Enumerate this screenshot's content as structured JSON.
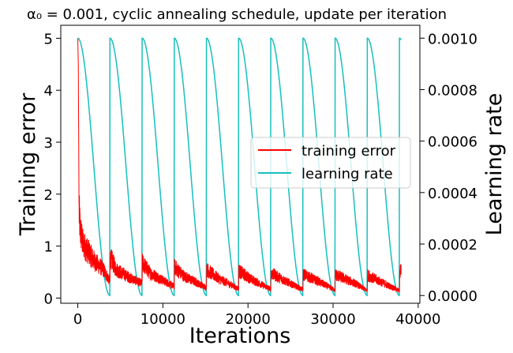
{
  "chart_data": {
    "type": "line",
    "title": "α₀ = 0.001, cyclic annealing schedule, update per iteration",
    "xlabel": "Iterations",
    "ylabel_left": "Training error",
    "ylabel_right": "Learning rate",
    "xlim": [
      -2000,
      40200
    ],
    "ylim_left": [
      -0.1,
      5.25
    ],
    "ylim_right": [
      -3e-05,
      0.00105
    ],
    "x_ticks": [
      0,
      10000,
      20000,
      30000,
      40000
    ],
    "x_tick_labels": [
      "0",
      "10000",
      "20000",
      "30000",
      "40000"
    ],
    "yleft_ticks": [
      0,
      1,
      2,
      3,
      4,
      5
    ],
    "yleft_tick_labels": [
      "0",
      "1",
      "2",
      "3",
      "4",
      "5"
    ],
    "yright_ticks": [
      0.0,
      0.0002,
      0.0004,
      0.0006,
      0.0008,
      0.001
    ],
    "yright_tick_labels": [
      "0.0000",
      "0.0002",
      "0.0004",
      "0.0006",
      "0.0008",
      "0.0010"
    ],
    "grid": false,
    "legend_position": "center-right",
    "series": [
      {
        "name": "training error",
        "axis": "left",
        "color": "#ff0000",
        "x": [
          0,
          60,
          150,
          300,
          600,
          1000,
          2000,
          3000,
          3780,
          3800,
          4500,
          6000,
          7560,
          7580,
          8500,
          11340,
          11360,
          12500,
          15120,
          15140,
          16500,
          18900,
          18920,
          20500,
          22680,
          22700,
          24500,
          26460,
          26480,
          28500,
          30240,
          30260,
          32500,
          34020,
          34040,
          36000,
          37800,
          37820,
          38000
        ],
        "values": [
          5.0,
          4.5,
          1.65,
          1.3,
          1.05,
          0.95,
          0.7,
          0.55,
          0.32,
          0.8,
          0.55,
          0.4,
          0.28,
          0.68,
          0.48,
          0.22,
          0.6,
          0.42,
          0.2,
          0.55,
          0.38,
          0.18,
          0.52,
          0.35,
          0.17,
          0.48,
          0.32,
          0.16,
          0.46,
          0.3,
          0.15,
          0.45,
          0.29,
          0.14,
          0.44,
          0.28,
          0.14,
          0.42,
          0.62
        ]
      },
      {
        "name": "learning rate",
        "axis": "right",
        "color": "#17bfbf",
        "cycle_length": 3780,
        "cycles": 10,
        "max": 0.001,
        "min": 0.0,
        "schedule": "cosine",
        "end_x": 38000
      }
    ]
  }
}
